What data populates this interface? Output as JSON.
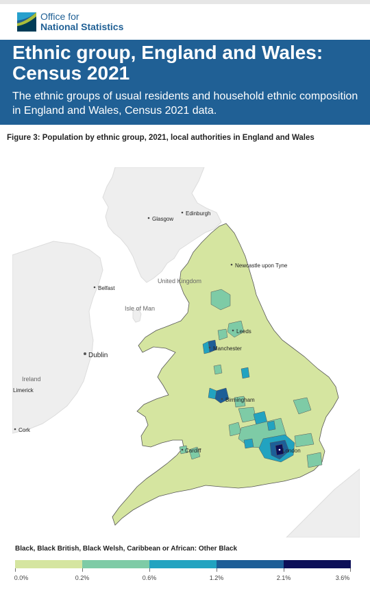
{
  "header": {
    "logo_line1": "Office for",
    "logo_line2": "National Statistics",
    "logo_icon": "ons-logo-icon"
  },
  "banner": {
    "title": "Ethnic group, England and Wales: Census 2021",
    "subtitle": "The ethnic groups of usual residents and household ethnic composition in England and Wales, Census 2021 data."
  },
  "figure": {
    "title": "Figure 3: Population by ethnic group, 2021, local authorities in England and Wales"
  },
  "map": {
    "places": {
      "glasgow": "Glasgow",
      "edinburgh": "Edinburgh",
      "newcastle": "Newcastle upon Tyne",
      "united_kingdom": "United Kingdom",
      "belfast": "Belfast",
      "isle_of_man": "Isle of Man",
      "leeds": "Leeds",
      "manchester": "Manchester",
      "dublin": "Dublin",
      "ireland": "Ireland",
      "limerick": "Limerick",
      "birmingham": "Birmingham",
      "cork": "Cork",
      "cardiff": "Cardiff",
      "london": "London"
    },
    "colors": {
      "water": "#ffffff",
      "land": "#eeeeee",
      "land_border": "#dcdcdc",
      "region_border": "#555555"
    }
  },
  "legend": {
    "title": "Black, Black British, Black Welsh, Caribbean or African: Other Black",
    "ticks": [
      "0.0%",
      "0.2%",
      "0.6%",
      "1.2%",
      "2.1%",
      "3.6%"
    ],
    "colors": [
      "#d5e5a0",
      "#7ecba6",
      "#22a3c0",
      "#1d5e97",
      "#0c0f58"
    ]
  }
}
